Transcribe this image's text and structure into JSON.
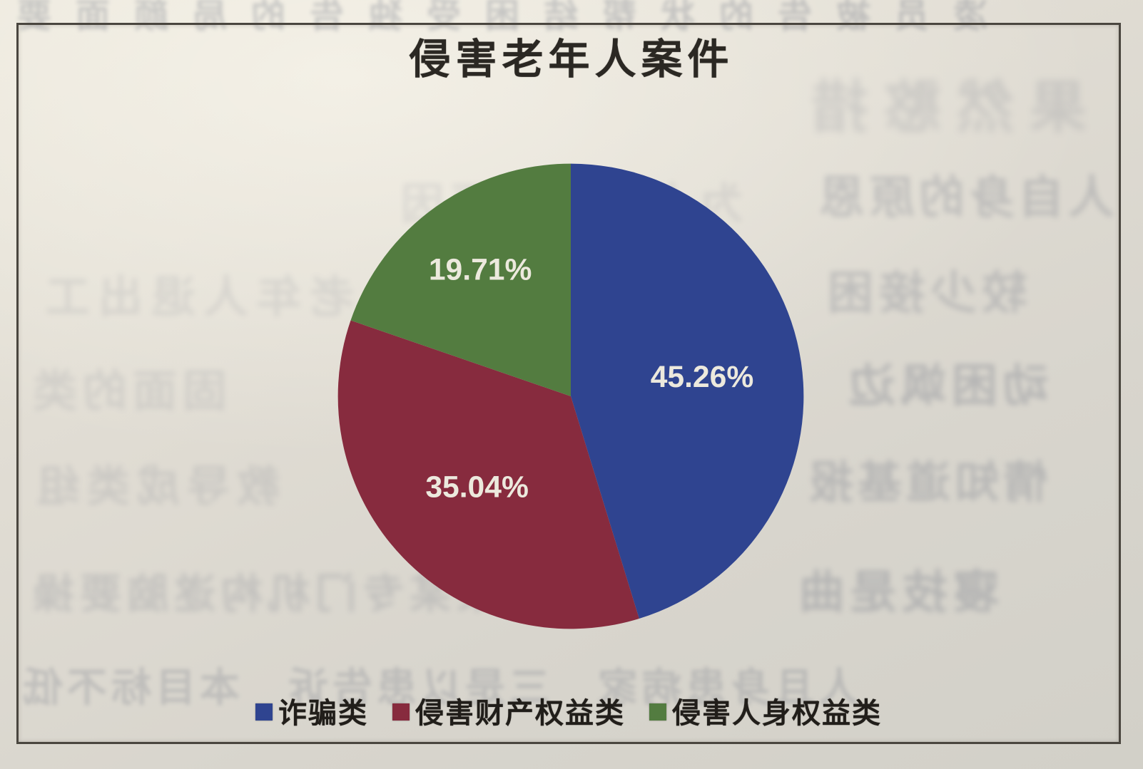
{
  "page": {
    "title": "侵害老年人案件"
  },
  "chart_data": {
    "type": "pie",
    "title": "侵害老年人案件",
    "legend_position": "bottom",
    "start_angle": "12-oclock",
    "direction": "clockwise",
    "series": [
      {
        "name": "诈骗类",
        "value": 45.26,
        "label": "45.26%",
        "color": "#2f4490"
      },
      {
        "name": "侵害财产权益类",
        "value": 35.04,
        "label": "35.04%",
        "color": "#872b3e"
      },
      {
        "name": "侵害人身权益类",
        "value": 19.71,
        "label": "19.71%",
        "color": "#537c40"
      }
    ],
    "slice_label_color": "#ece9dd"
  },
  "bleedthrough": {
    "note": "faint mirrored text showing through from the reverse page (illegible)",
    "lines": [
      "凌员被告的状帮结困受独告的局颜面要",
      "果然憨措",
      "为人方面的原因",
      "人自身的原恩",
      "老年人退出工",
      "较少接困",
      "固面的类",
      "动困飒边",
      "教导成类组",
      "情知道基报",
      "与某某专门机构遂脑要操",
      "寝技是曲",
      "人且身患病家　三是以患告诉　本目标不低"
    ]
  }
}
